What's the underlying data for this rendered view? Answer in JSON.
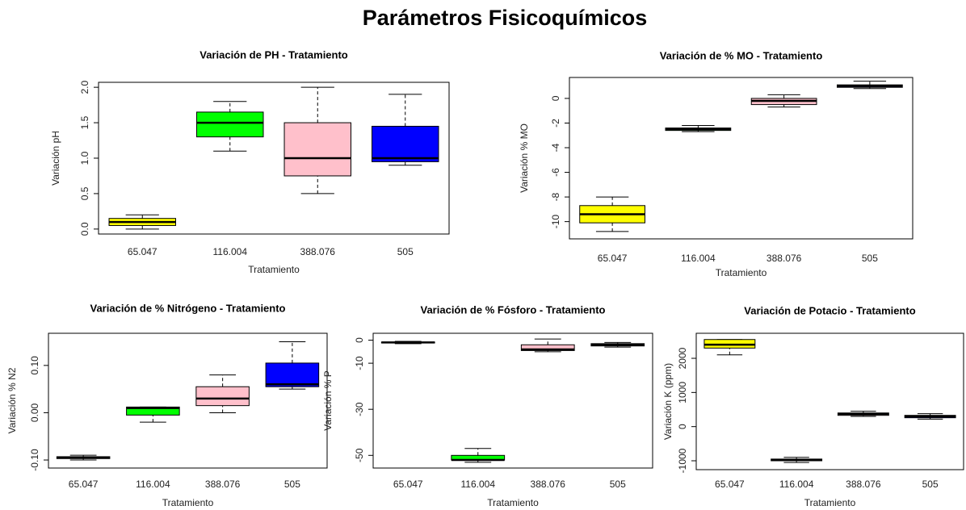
{
  "title": "Parámetros Fisicoquímicos",
  "chart_data": [
    {
      "type": "box",
      "title": "Variación de PH - Tratamiento",
      "x_label": "Tratamiento",
      "y_label": "Variación pH",
      "categories": [
        "65.047",
        "116.004",
        "388.076",
        "505"
      ],
      "boxes": [
        {
          "min": 0.0,
          "q1": 0.05,
          "median": 0.1,
          "q3": 0.15,
          "max": 0.2,
          "color": "#ffff00"
        },
        {
          "min": 1.1,
          "q1": 1.3,
          "median": 1.5,
          "q3": 1.65,
          "max": 1.8,
          "color": "#00ff00"
        },
        {
          "min": 0.5,
          "q1": 0.75,
          "median": 1.0,
          "q3": 1.5,
          "max": 2.0,
          "color": "#ffc0cb"
        },
        {
          "min": 0.9,
          "q1": 0.95,
          "median": 1.0,
          "q3": 1.45,
          "max": 1.9,
          "color": "#0000ff"
        }
      ],
      "ylim": [
        -0.07,
        2.07
      ],
      "yticks": [
        {
          "value": 0,
          "label": "0.0"
        },
        {
          "value": 0.5,
          "label": "0.5"
        },
        {
          "value": 1,
          "label": "1.0"
        },
        {
          "value": 1.5,
          "label": "1.5"
        },
        {
          "value": 2,
          "label": "2.0"
        }
      ]
    },
    {
      "type": "box",
      "title": "Variación de % MO - Tratamiento",
      "x_label": "Tratamiento",
      "y_label": "Variación % MO",
      "categories": [
        "65.047",
        "116.004",
        "388.076",
        "505"
      ],
      "boxes": [
        {
          "min": -10.8,
          "q1": -10.1,
          "median": -9.4,
          "q3": -8.7,
          "max": -8.0,
          "color": "#ffff00"
        },
        {
          "min": -2.7,
          "q1": -2.6,
          "median": -2.5,
          "q3": -2.4,
          "max": -2.2,
          "color": "#00ff00"
        },
        {
          "min": -0.7,
          "q1": -0.5,
          "median": -0.2,
          "q3": 0.0,
          "max": 0.3,
          "color": "#ffc0cb"
        },
        {
          "min": 0.8,
          "q1": 0.9,
          "median": 1.0,
          "q3": 1.1,
          "max": 1.4,
          "color": "#0000ff"
        }
      ],
      "ylim": [
        -11.4,
        1.7
      ],
      "yticks": [
        0,
        -2,
        -4,
        -6,
        -8,
        -10
      ]
    },
    {
      "type": "box",
      "title": "Variación de % Nitrógeno - Tratamiento",
      "x_label": "Tratamiento",
      "y_label": "Variación % N2",
      "categories": [
        "65.047",
        "116.004",
        "388.076",
        "505"
      ],
      "boxes": [
        {
          "min": -0.1,
          "q1": -0.097,
          "median": -0.095,
          "q3": -0.093,
          "max": -0.09,
          "color": "#ffff00"
        },
        {
          "min": -0.02,
          "q1": -0.005,
          "median": 0.01,
          "q3": 0.012,
          "max": 0.012,
          "color": "#00ff00"
        },
        {
          "min": 0.0,
          "q1": 0.015,
          "median": 0.03,
          "q3": 0.055,
          "max": 0.08,
          "color": "#ffc0cb"
        },
        {
          "min": 0.05,
          "q1": 0.055,
          "median": 0.06,
          "q3": 0.105,
          "max": 0.15,
          "color": "#0000ff"
        }
      ],
      "ylim": [
        -0.117,
        0.168
      ],
      "yticks": [
        {
          "value": -0.1,
          "label": "-0.10"
        },
        {
          "value": 0,
          "label": "0.00"
        },
        {
          "value": 0.1,
          "label": "0.10"
        }
      ]
    },
    {
      "type": "box",
      "title": "Variación de % Fósforo - Tratamiento",
      "x_label": "Tratamiento",
      "y_label": "Variación % P",
      "categories": [
        "65.047",
        "116.004",
        "388.076",
        "505"
      ],
      "boxes": [
        {
          "min": -1.5,
          "q1": -1.2,
          "median": -1.0,
          "q3": -0.8,
          "max": -0.5,
          "color": "#ffff00"
        },
        {
          "min": -53,
          "q1": -52,
          "median": -52,
          "q3": -50,
          "max": -47,
          "color": "#00ff00"
        },
        {
          "min": -5,
          "q1": -4.5,
          "median": -4,
          "q3": -2,
          "max": 0.5,
          "color": "#ffc0cb"
        },
        {
          "min": -3,
          "q1": -2.5,
          "median": -2,
          "q3": -1.5,
          "max": -1,
          "color": "#0000ff"
        }
      ],
      "ylim": [
        -55.5,
        3
      ],
      "yticks": [
        0,
        -10,
        -30,
        -50
      ]
    },
    {
      "type": "box",
      "title": "Variación de Potacio - Tratamiento",
      "x_label": "Tratamiento",
      "y_label": "Variación K (ppm)",
      "categories": [
        "65.047",
        "116.004",
        "388.076",
        "505"
      ],
      "boxes": [
        {
          "min": 2100,
          "q1": 2300,
          "median": 2400,
          "q3": 2550,
          "max": 2550,
          "color": "#ffff00"
        },
        {
          "min": -1050,
          "q1": -1000,
          "median": -980,
          "q3": -950,
          "max": -900,
          "color": "#00ff00"
        },
        {
          "min": 300,
          "q1": 330,
          "median": 370,
          "q3": 400,
          "max": 450,
          "color": "#ffc0cb"
        },
        {
          "min": 220,
          "q1": 260,
          "median": 300,
          "q3": 330,
          "max": 380,
          "color": "#0000ff"
        }
      ],
      "ylim": [
        -1260,
        2733
      ],
      "yticks": [
        -1000,
        0,
        1000,
        2000
      ]
    }
  ]
}
